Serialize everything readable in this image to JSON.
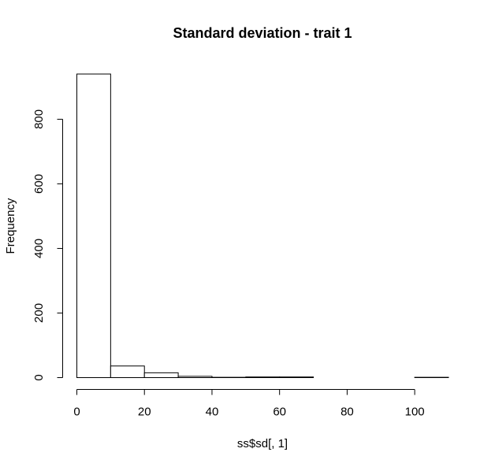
{
  "chart_data": {
    "type": "histogram",
    "title": "Standard deviation - trait 1",
    "xlabel": "ss$sd[, 1]",
    "ylabel": "Frequency",
    "bins": [
      {
        "start": 0,
        "end": 10,
        "count": 940
      },
      {
        "start": 10,
        "end": 20,
        "count": 36
      },
      {
        "start": 20,
        "end": 30,
        "count": 15
      },
      {
        "start": 30,
        "end": 40,
        "count": 4
      },
      {
        "start": 40,
        "end": 50,
        "count": 1
      },
      {
        "start": 50,
        "end": 60,
        "count": 2
      },
      {
        "start": 60,
        "end": 70,
        "count": 2
      },
      {
        "start": 70,
        "end": 80,
        "count": 0
      },
      {
        "start": 80,
        "end": 90,
        "count": 0
      },
      {
        "start": 90,
        "end": 100,
        "count": 0
      },
      {
        "start": 100,
        "end": 110,
        "count": 1
      }
    ],
    "xlim": [
      0,
      110
    ],
    "ylim": [
      0,
      940
    ],
    "x_ticks": [
      0,
      20,
      40,
      60,
      80,
      100
    ],
    "y_ticks": [
      0,
      200,
      400,
      600,
      800
    ],
    "bar_fill": "#ffffff",
    "bar_stroke": "#000000",
    "grid": false,
    "legend": "none"
  }
}
